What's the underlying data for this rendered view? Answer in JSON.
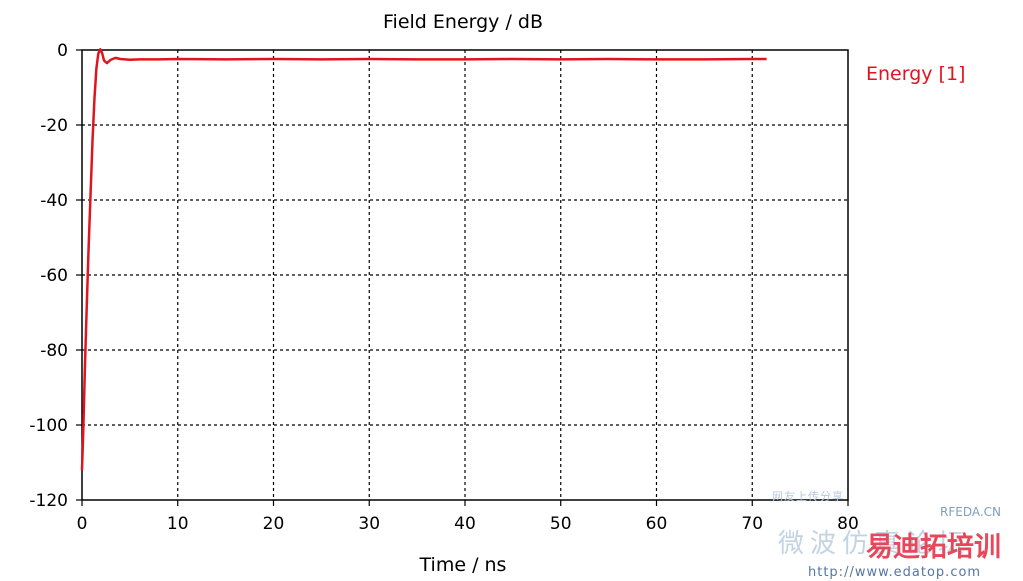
{
  "chart_data": {
    "type": "line",
    "title": "Field Energy / dB",
    "xlabel": "Time / ns",
    "ylabel": "",
    "xlim": [
      0,
      80
    ],
    "ylim": [
      -120,
      0
    ],
    "xticks": [
      0,
      10,
      20,
      30,
      40,
      50,
      60,
      70,
      80
    ],
    "yticks": [
      0,
      -20,
      -40,
      -60,
      -80,
      -100,
      -120
    ],
    "grid": true,
    "legend": "right",
    "series": [
      {
        "name": "Energy [1]",
        "color": "#e0141e",
        "x": [
          0.0,
          0.15,
          0.3,
          0.5,
          0.7,
          0.9,
          1.1,
          1.3,
          1.5,
          1.7,
          1.9,
          2.1,
          2.3,
          2.6,
          3.0,
          3.5,
          4.0,
          5.0,
          6.0,
          8.0,
          10.0,
          15.0,
          20.0,
          25.0,
          30.0,
          35.0,
          40.0,
          45.0,
          50.0,
          55.0,
          60.0,
          65.0,
          70.0,
          71.5
        ],
        "y": [
          -112,
          -100,
          -85,
          -68,
          -52,
          -38,
          -24,
          -13,
          -5,
          -1,
          0.2,
          -0.8,
          -2.8,
          -3.5,
          -2.6,
          -2.1,
          -2.4,
          -2.6,
          -2.5,
          -2.5,
          -2.4,
          -2.5,
          -2.4,
          -2.5,
          -2.4,
          -2.5,
          -2.5,
          -2.4,
          -2.5,
          -2.4,
          -2.5,
          -2.5,
          -2.4,
          -2.4
        ]
      }
    ]
  },
  "watermark": {
    "small_text": "网友上传分享",
    "cn_text": "微波仿真论坛",
    "brand": "RFEDA.CN",
    "red_text": "易迪拓培训",
    "url": "http://www.edatop.com"
  }
}
